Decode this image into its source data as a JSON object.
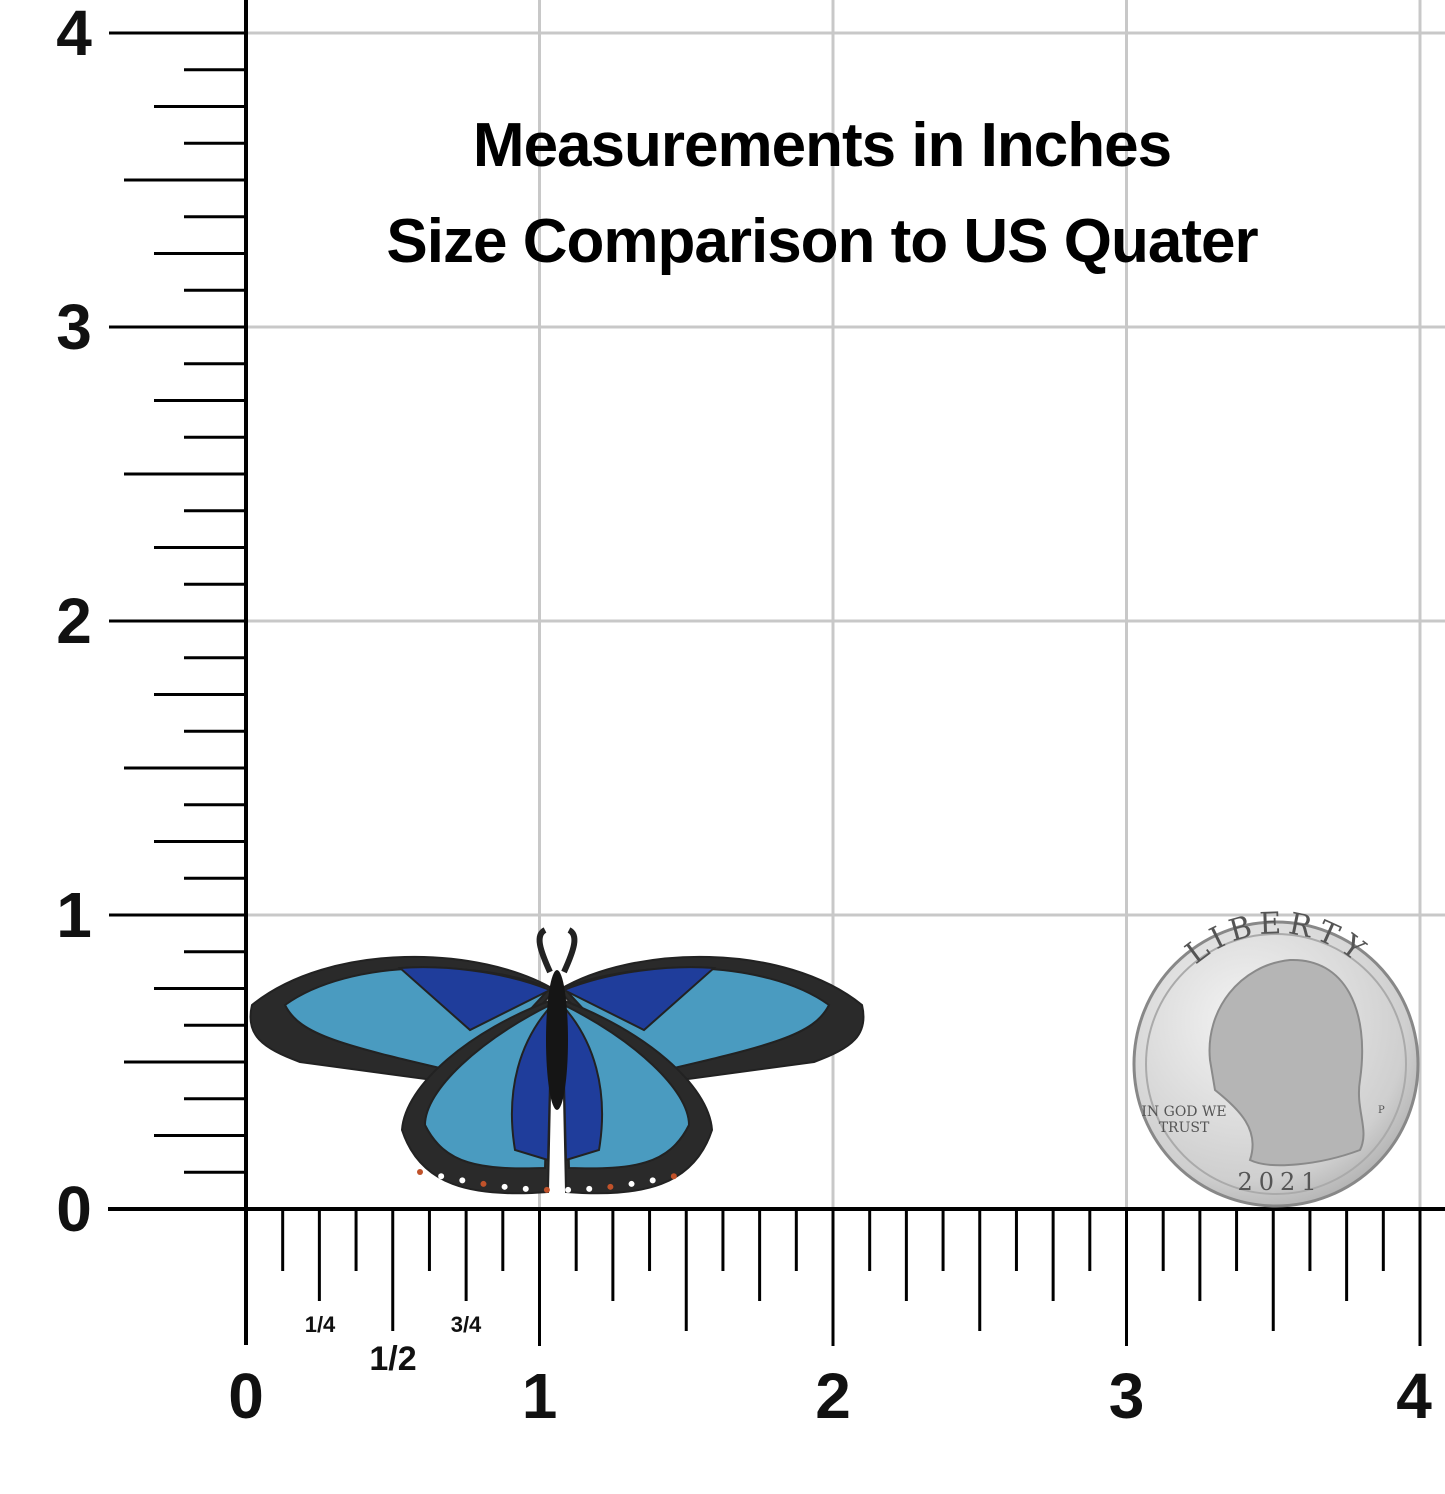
{
  "title": {
    "line1": "Measurements in Inches",
    "line2": "Size Comparison to US Quater"
  },
  "ruler": {
    "y_labels": [
      0,
      1,
      2,
      3,
      4
    ],
    "x_labels": [
      0,
      1,
      2,
      3,
      4
    ],
    "fraction_labels": [
      "1/4",
      "1/2",
      "3/4"
    ]
  },
  "coin": {
    "top": "LIBERTY",
    "motto1": "IN GOD WE",
    "motto2": "TRUST",
    "year": "2021",
    "mint": "P"
  }
}
